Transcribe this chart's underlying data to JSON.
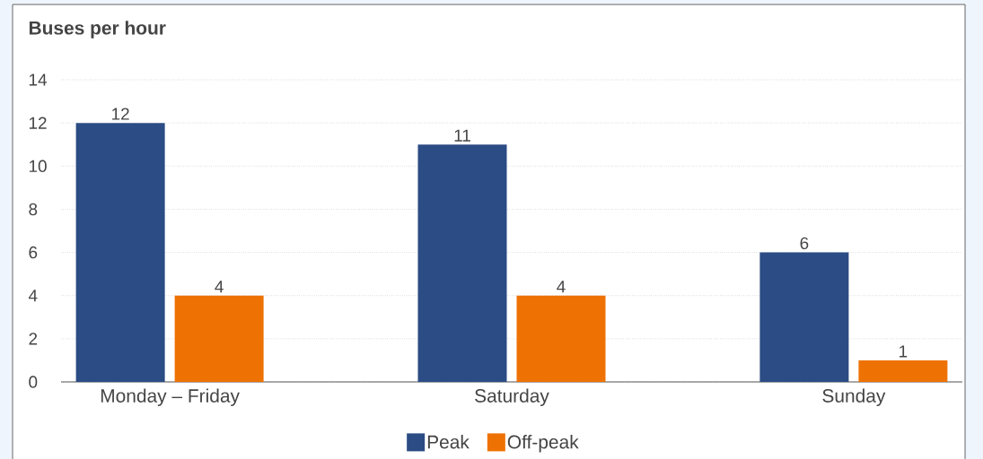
{
  "chart_data": {
    "type": "bar",
    "ylabel": "Buses per hour",
    "categories": [
      "Monday – Friday",
      "Saturday",
      "Sunday"
    ],
    "series": [
      {
        "name": "Peak",
        "color": "#2b4c84",
        "values": [
          12,
          11,
          6
        ]
      },
      {
        "name": "Off-peak",
        "color": "#ee7203",
        "values": [
          4,
          4,
          1
        ]
      }
    ],
    "ylim": [
      0,
      14
    ],
    "yticks": [
      0,
      2,
      4,
      6,
      8,
      10,
      12,
      14
    ],
    "grid": "y",
    "legend": "bottom",
    "data_labels": true
  }
}
